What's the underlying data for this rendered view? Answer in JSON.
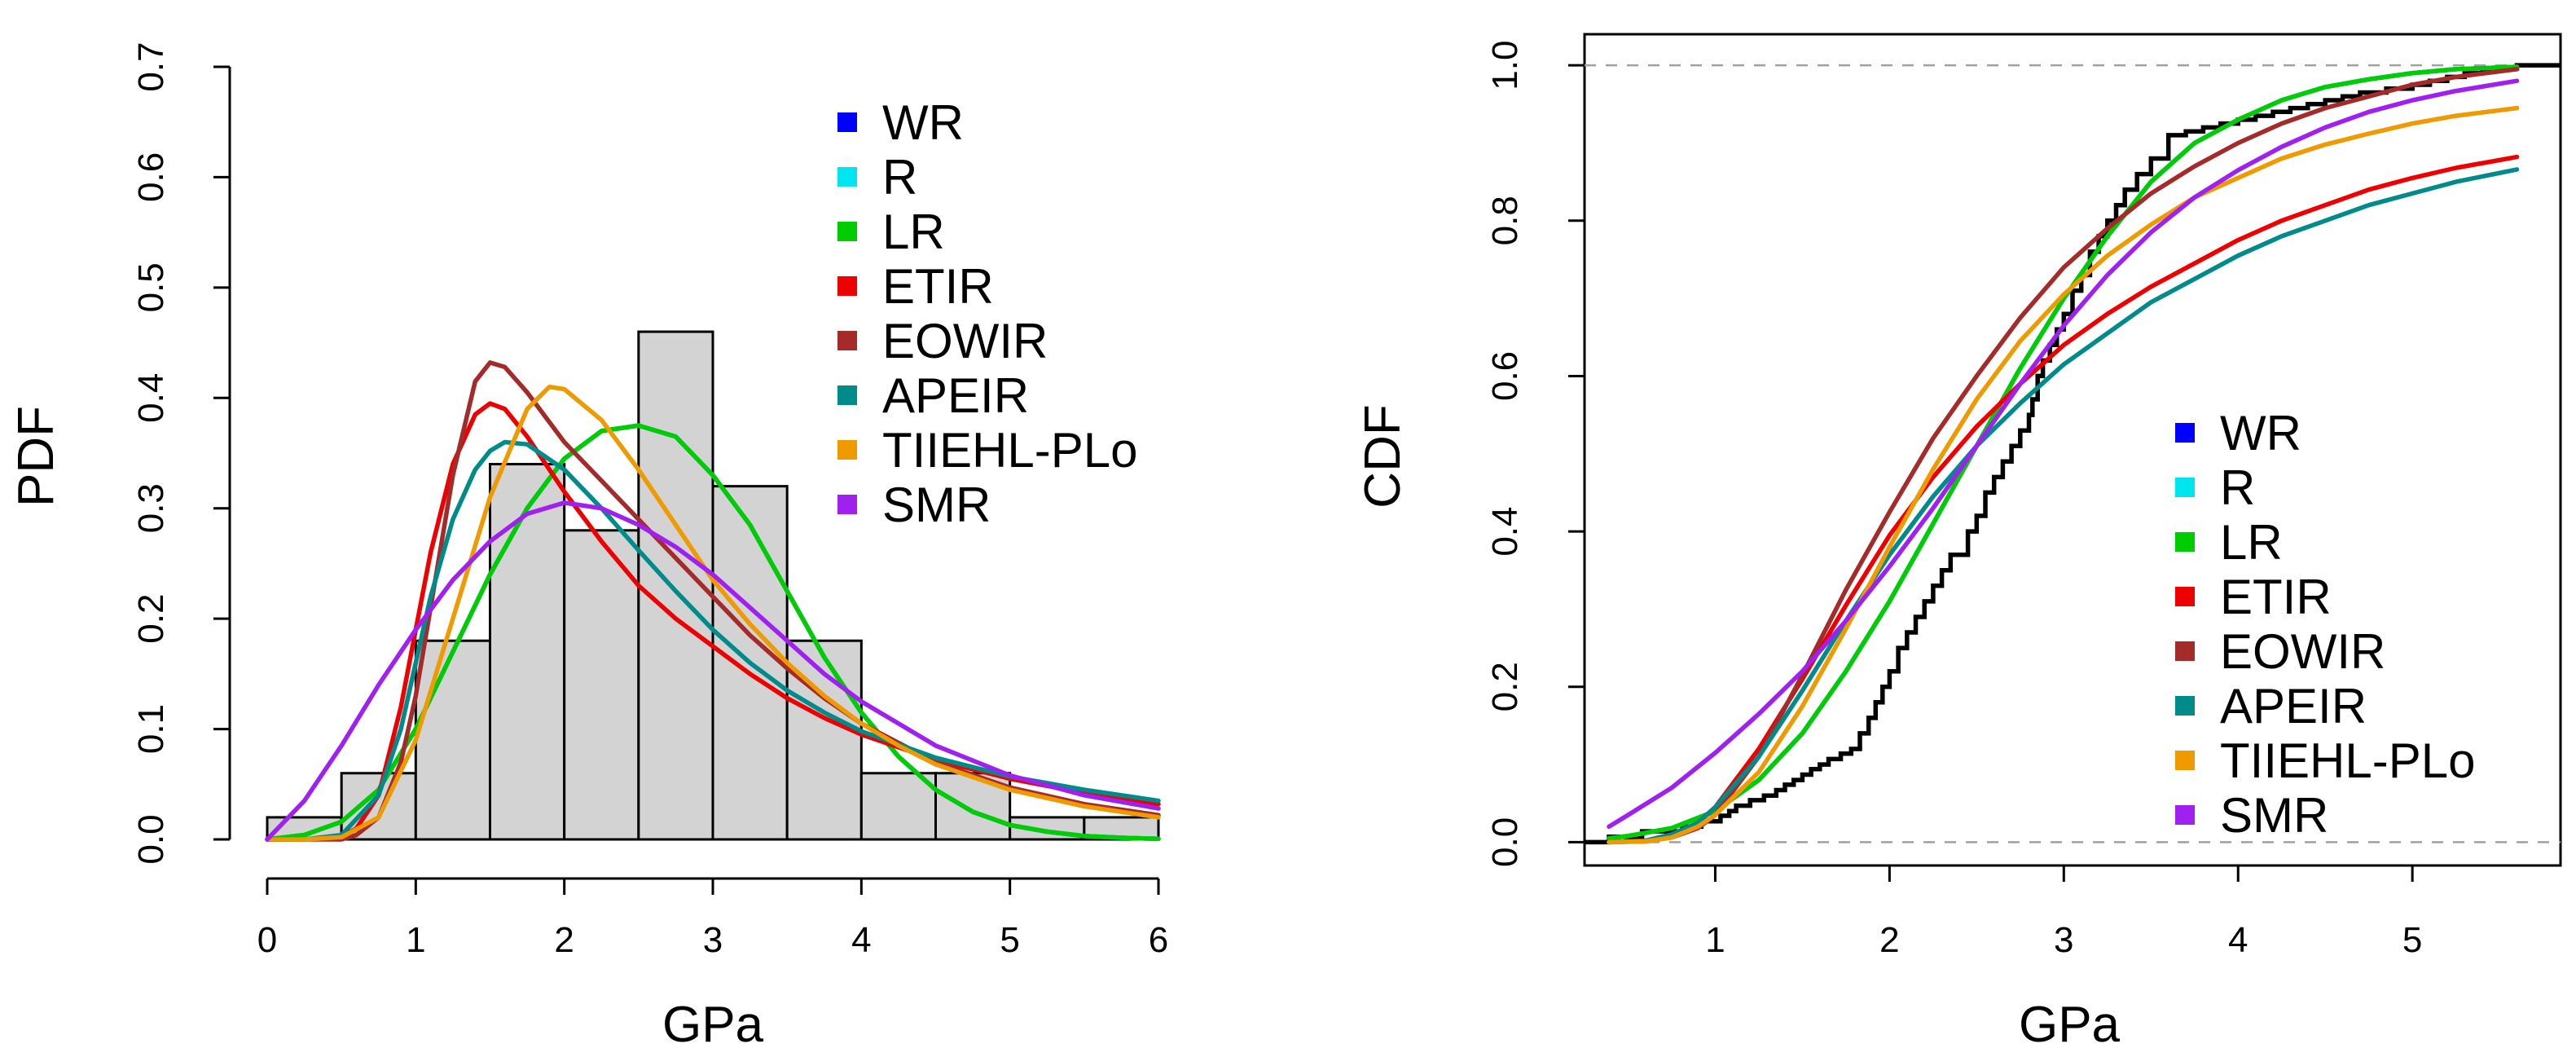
{
  "chart_data": [
    {
      "type": "histogram",
      "title": "",
      "xlabel": "GPa",
      "ylabel": "PDF",
      "xlim": [
        0,
        6
      ],
      "ylim": [
        0,
        0.7
      ],
      "xticks": [
        0,
        1,
        2,
        3,
        4,
        5,
        6
      ],
      "yticks": [
        "0.0",
        "0.1",
        "0.2",
        "0.3",
        "0.4",
        "0.5",
        "0.6",
        "0.7"
      ],
      "legend_position": "top-right",
      "bins": [
        {
          "x0": 0.0,
          "x1": 0.5,
          "density": 0.02
        },
        {
          "x0": 0.5,
          "x1": 1.0,
          "density": 0.06
        },
        {
          "x0": 1.0,
          "x1": 1.5,
          "density": 0.18
        },
        {
          "x0": 1.5,
          "x1": 2.0,
          "density": 0.34
        },
        {
          "x0": 2.0,
          "x1": 2.5,
          "density": 0.28
        },
        {
          "x0": 2.5,
          "x1": 3.0,
          "density": 0.46
        },
        {
          "x0": 3.0,
          "x1": 3.5,
          "density": 0.32
        },
        {
          "x0": 3.5,
          "x1": 4.0,
          "density": 0.18
        },
        {
          "x0": 4.0,
          "x1": 4.5,
          "density": 0.06
        },
        {
          "x0": 4.5,
          "x1": 5.0,
          "density": 0.06
        },
        {
          "x0": 5.0,
          "x1": 5.5,
          "density": 0.02
        },
        {
          "x0": 5.5,
          "x1": 6.0,
          "density": 0.02
        }
      ],
      "series": [
        {
          "name": "WR",
          "color": "#0000ff",
          "x": [
            0,
            0.25,
            0.5,
            0.75,
            1,
            1.25,
            1.5,
            1.75,
            2,
            2.25,
            2.5,
            2.75,
            3,
            3.25,
            3.5,
            3.75,
            4,
            4.25,
            4.5,
            4.75,
            5,
            5.25,
            5.5,
            5.75,
            6
          ],
          "y": [
            0,
            0.004,
            0.016,
            0.045,
            0.1,
            0.17,
            0.24,
            0.3,
            0.345,
            0.37,
            0.375,
            0.365,
            0.33,
            0.285,
            0.225,
            0.165,
            0.115,
            0.075,
            0.045,
            0.025,
            0.013,
            0.007,
            0.003,
            0.0015,
            0.0005
          ]
        },
        {
          "name": "R",
          "color": "#00e5ee",
          "x": [
            0,
            0.25,
            0.5,
            0.75,
            1,
            1.25,
            1.5,
            1.75,
            2,
            2.25,
            2.5,
            2.75,
            3,
            3.25,
            3.5,
            3.75,
            4,
            4.25,
            4.5,
            4.75,
            5,
            5.25,
            5.5,
            5.75,
            6
          ],
          "y": [
            0,
            0.004,
            0.016,
            0.045,
            0.1,
            0.17,
            0.24,
            0.3,
            0.345,
            0.37,
            0.375,
            0.365,
            0.33,
            0.285,
            0.225,
            0.165,
            0.115,
            0.075,
            0.045,
            0.025,
            0.013,
            0.007,
            0.003,
            0.0015,
            0.0005
          ]
        },
        {
          "name": "LR",
          "color": "#00cd00",
          "x": [
            0,
            0.25,
            0.5,
            0.75,
            1,
            1.25,
            1.5,
            1.75,
            2,
            2.25,
            2.5,
            2.75,
            3,
            3.25,
            3.5,
            3.75,
            4,
            4.25,
            4.5,
            4.75,
            5,
            5.25,
            5.5,
            5.75,
            6
          ],
          "y": [
            0,
            0.004,
            0.016,
            0.045,
            0.1,
            0.17,
            0.24,
            0.3,
            0.345,
            0.37,
            0.375,
            0.365,
            0.33,
            0.285,
            0.225,
            0.165,
            0.115,
            0.075,
            0.045,
            0.025,
            0.013,
            0.007,
            0.003,
            0.0015,
            0.0005
          ]
        },
        {
          "name": "ETIR",
          "color": "#ee0000",
          "x": [
            0,
            0.25,
            0.5,
            0.6,
            0.75,
            0.9,
            1,
            1.1,
            1.25,
            1.4,
            1.5,
            1.6,
            1.75,
            2,
            2.25,
            2.5,
            2.75,
            3,
            3.25,
            3.5,
            3.75,
            4,
            4.5,
            5,
            5.5,
            6
          ],
          "y": [
            0,
            0,
            0.002,
            0.01,
            0.04,
            0.12,
            0.19,
            0.26,
            0.34,
            0.385,
            0.395,
            0.39,
            0.365,
            0.315,
            0.27,
            0.23,
            0.2,
            0.175,
            0.15,
            0.128,
            0.11,
            0.095,
            0.072,
            0.055,
            0.042,
            0.032
          ]
        },
        {
          "name": "EOWIR",
          "color": "#a52a2a",
          "x": [
            0,
            0.25,
            0.5,
            0.6,
            0.75,
            0.9,
            1,
            1.1,
            1.25,
            1.4,
            1.5,
            1.6,
            1.75,
            2,
            2.25,
            2.5,
            2.75,
            3,
            3.25,
            3.5,
            3.75,
            4,
            4.5,
            5,
            5.5,
            6
          ],
          "y": [
            0,
            0,
            0,
            0.004,
            0.02,
            0.07,
            0.13,
            0.21,
            0.33,
            0.415,
            0.432,
            0.428,
            0.405,
            0.36,
            0.325,
            0.29,
            0.255,
            0.22,
            0.185,
            0.155,
            0.128,
            0.105,
            0.07,
            0.047,
            0.032,
            0.022
          ]
        },
        {
          "name": "APEIR",
          "color": "#008b8b",
          "x": [
            0,
            0.25,
            0.5,
            0.75,
            0.9,
            1,
            1.1,
            1.25,
            1.4,
            1.5,
            1.6,
            1.75,
            2,
            2.25,
            2.5,
            2.75,
            3,
            3.25,
            3.5,
            3.75,
            4,
            4.5,
            5,
            5.5,
            6
          ],
          "y": [
            0,
            0,
            0.004,
            0.04,
            0.1,
            0.16,
            0.22,
            0.29,
            0.335,
            0.352,
            0.36,
            0.358,
            0.335,
            0.3,
            0.262,
            0.225,
            0.19,
            0.16,
            0.135,
            0.115,
            0.098,
            0.074,
            0.057,
            0.045,
            0.035
          ]
        },
        {
          "name": "TIIEHL-PLo",
          "color": "#ee9a00",
          "x": [
            0,
            0.25,
            0.5,
            0.75,
            1,
            1.25,
            1.5,
            1.75,
            1.9,
            2,
            2.25,
            2.5,
            2.75,
            3,
            3.25,
            3.5,
            3.75,
            4,
            4.25,
            4.5,
            5,
            5.5,
            6
          ],
          "y": [
            0,
            0,
            0.002,
            0.02,
            0.09,
            0.2,
            0.31,
            0.39,
            0.41,
            0.408,
            0.38,
            0.335,
            0.285,
            0.235,
            0.195,
            0.16,
            0.13,
            0.105,
            0.085,
            0.068,
            0.045,
            0.03,
            0.02
          ]
        },
        {
          "name": "SMR",
          "color": "#a020f0",
          "x": [
            0,
            0.25,
            0.5,
            0.75,
            1,
            1.25,
            1.5,
            1.75,
            2,
            2.25,
            2.5,
            2.75,
            3,
            3.25,
            3.5,
            3.75,
            4,
            4.5,
            5,
            5.5,
            6
          ],
          "y": [
            0,
            0.035,
            0.085,
            0.14,
            0.19,
            0.235,
            0.27,
            0.295,
            0.305,
            0.3,
            0.285,
            0.265,
            0.24,
            0.21,
            0.18,
            0.15,
            0.125,
            0.085,
            0.058,
            0.04,
            0.028
          ]
        }
      ]
    },
    {
      "type": "line",
      "title": "",
      "xlabel": "GPa",
      "ylabel": "CDF",
      "xlim": [
        0.25,
        5.85
      ],
      "ylim": [
        -0.03,
        1.04
      ],
      "xticks": [
        1,
        2,
        3,
        4,
        5
      ],
      "yticks": [
        "0.0",
        "0.2",
        "0.4",
        "0.6",
        "0.8",
        "1.0"
      ],
      "reference_lines": [
        0,
        1
      ],
      "legend_position": "bottom-right",
      "ecdf": {
        "x": [
          0.39,
          0.58,
          0.81,
          0.92,
          1.03,
          1.08,
          1.12,
          1.2,
          1.28,
          1.35,
          1.4,
          1.45,
          1.5,
          1.55,
          1.6,
          1.65,
          1.72,
          1.78,
          1.83,
          1.88,
          1.92,
          1.96,
          2.0,
          2.05,
          2.1,
          2.15,
          2.2,
          2.25,
          2.3,
          2.35,
          2.45,
          2.5,
          2.55,
          2.6,
          2.65,
          2.7,
          2.75,
          2.8,
          2.82,
          2.85,
          2.88,
          2.92,
          2.96,
          3.0,
          3.05,
          3.1,
          3.15,
          3.2,
          3.25,
          3.3,
          3.35,
          3.42,
          3.5,
          3.6,
          3.7,
          3.8,
          3.9,
          4.0,
          4.1,
          4.2,
          4.3,
          4.4,
          4.5,
          4.6,
          4.7,
          4.85,
          5.0,
          5.1,
          5.2,
          5.3,
          5.4,
          5.5,
          5.6
        ],
        "y": [
          0.007,
          0.014,
          0.02,
          0.027,
          0.034,
          0.04,
          0.047,
          0.054,
          0.06,
          0.067,
          0.074,
          0.08,
          0.087,
          0.094,
          0.1,
          0.107,
          0.114,
          0.12,
          0.14,
          0.16,
          0.18,
          0.2,
          0.22,
          0.25,
          0.27,
          0.29,
          0.31,
          0.33,
          0.35,
          0.37,
          0.4,
          0.42,
          0.45,
          0.47,
          0.49,
          0.51,
          0.53,
          0.55,
          0.57,
          0.6,
          0.62,
          0.64,
          0.66,
          0.68,
          0.71,
          0.73,
          0.76,
          0.78,
          0.8,
          0.82,
          0.84,
          0.86,
          0.88,
          0.91,
          0.915,
          0.92,
          0.925,
          0.93,
          0.935,
          0.94,
          0.945,
          0.95,
          0.955,
          0.96,
          0.965,
          0.97,
          0.975,
          0.98,
          0.985,
          0.99,
          0.993,
          0.996,
          1.0
        ]
      },
      "series": [
        {
          "name": "WR",
          "color": "#0000ff",
          "x": [
            0.39,
            0.5,
            0.75,
            1,
            1.25,
            1.5,
            1.75,
            2,
            2.25,
            2.5,
            2.75,
            3,
            3.25,
            3.5,
            3.75,
            4,
            4.25,
            4.5,
            4.75,
            5,
            5.25,
            5.6
          ],
          "y": [
            0.005,
            0.008,
            0.018,
            0.04,
            0.08,
            0.14,
            0.22,
            0.31,
            0.41,
            0.51,
            0.61,
            0.7,
            0.78,
            0.85,
            0.9,
            0.93,
            0.955,
            0.972,
            0.982,
            0.99,
            0.995,
            0.998
          ]
        },
        {
          "name": "R",
          "color": "#00e5ee",
          "x": [
            0.39,
            0.5,
            0.75,
            1,
            1.25,
            1.5,
            1.75,
            2,
            2.25,
            2.5,
            2.75,
            3,
            3.25,
            3.5,
            3.75,
            4,
            4.25,
            4.5,
            4.75,
            5,
            5.25,
            5.6
          ],
          "y": [
            0.005,
            0.008,
            0.018,
            0.04,
            0.08,
            0.14,
            0.22,
            0.31,
            0.41,
            0.51,
            0.61,
            0.7,
            0.78,
            0.85,
            0.9,
            0.93,
            0.955,
            0.972,
            0.982,
            0.99,
            0.995,
            0.998
          ]
        },
        {
          "name": "LR",
          "color": "#00cd00",
          "x": [
            0.39,
            0.5,
            0.75,
            1,
            1.25,
            1.5,
            1.75,
            2,
            2.25,
            2.5,
            2.75,
            3,
            3.25,
            3.5,
            3.75,
            4,
            4.25,
            4.5,
            4.75,
            5,
            5.25,
            5.6
          ],
          "y": [
            0.005,
            0.008,
            0.018,
            0.04,
            0.08,
            0.14,
            0.22,
            0.31,
            0.41,
            0.51,
            0.61,
            0.7,
            0.78,
            0.85,
            0.9,
            0.93,
            0.955,
            0.972,
            0.982,
            0.99,
            0.995,
            0.998
          ]
        },
        {
          "name": "ETIR",
          "color": "#ee0000",
          "x": [
            0.39,
            0.6,
            0.75,
            0.9,
            1,
            1.25,
            1.5,
            1.75,
            2,
            2.25,
            2.5,
            2.75,
            3,
            3.25,
            3.5,
            3.75,
            4,
            4.25,
            4.5,
            4.75,
            5,
            5.25,
            5.6
          ],
          "y": [
            0,
            0.002,
            0.01,
            0.025,
            0.045,
            0.12,
            0.21,
            0.305,
            0.395,
            0.47,
            0.535,
            0.59,
            0.64,
            0.68,
            0.715,
            0.745,
            0.775,
            0.8,
            0.82,
            0.84,
            0.855,
            0.868,
            0.882
          ]
        },
        {
          "name": "EOWIR",
          "color": "#a52a2a",
          "x": [
            0.39,
            0.6,
            0.75,
            0.9,
            1,
            1.25,
            1.5,
            1.75,
            2,
            2.25,
            2.5,
            2.75,
            3,
            3.25,
            3.5,
            3.75,
            4,
            4.25,
            4.5,
            4.75,
            5,
            5.25,
            5.6
          ],
          "y": [
            0,
            0.001,
            0.006,
            0.018,
            0.035,
            0.11,
            0.215,
            0.325,
            0.425,
            0.52,
            0.6,
            0.675,
            0.74,
            0.79,
            0.835,
            0.87,
            0.9,
            0.925,
            0.945,
            0.96,
            0.975,
            0.985,
            0.995
          ]
        },
        {
          "name": "APEIR",
          "color": "#008b8b",
          "x": [
            0.39,
            0.6,
            0.75,
            0.9,
            1,
            1.25,
            1.5,
            1.75,
            2,
            2.25,
            2.5,
            2.75,
            3,
            3.25,
            3.5,
            3.75,
            4,
            4.25,
            4.5,
            4.75,
            5,
            5.25,
            5.6
          ],
          "y": [
            0,
            0.002,
            0.01,
            0.025,
            0.045,
            0.11,
            0.195,
            0.285,
            0.37,
            0.445,
            0.51,
            0.565,
            0.615,
            0.655,
            0.695,
            0.725,
            0.755,
            0.78,
            0.8,
            0.82,
            0.835,
            0.85,
            0.866
          ]
        },
        {
          "name": "TIIEHL-PLo",
          "color": "#ee9a00",
          "x": [
            0.39,
            0.6,
            0.75,
            0.9,
            1,
            1.25,
            1.5,
            1.75,
            2,
            2.25,
            2.5,
            2.75,
            3,
            3.25,
            3.5,
            3.75,
            4,
            4.25,
            4.5,
            4.75,
            5,
            5.25,
            5.6
          ],
          "y": [
            0,
            0.001,
            0.006,
            0.02,
            0.035,
            0.09,
            0.175,
            0.275,
            0.38,
            0.48,
            0.57,
            0.645,
            0.705,
            0.755,
            0.795,
            0.83,
            0.855,
            0.88,
            0.898,
            0.912,
            0.925,
            0.935,
            0.945
          ]
        },
        {
          "name": "SMR",
          "color": "#a020f0",
          "x": [
            0.39,
            0.5,
            0.75,
            1,
            1.25,
            1.5,
            1.75,
            2,
            2.25,
            2.5,
            2.75,
            3,
            3.25,
            3.5,
            3.75,
            4,
            4.25,
            4.5,
            4.75,
            5,
            5.25,
            5.6
          ],
          "y": [
            0.02,
            0.035,
            0.07,
            0.115,
            0.165,
            0.22,
            0.285,
            0.355,
            0.43,
            0.51,
            0.59,
            0.665,
            0.73,
            0.785,
            0.83,
            0.865,
            0.895,
            0.92,
            0.94,
            0.955,
            0.967,
            0.98
          ]
        }
      ]
    }
  ]
}
